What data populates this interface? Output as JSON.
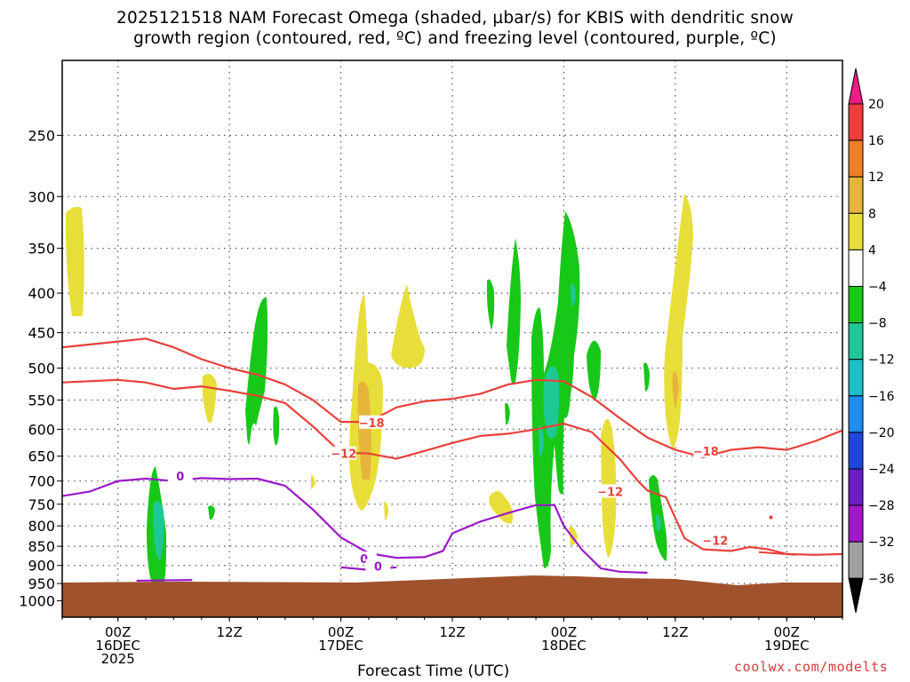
{
  "title_line1": "2025121518 NAM Forecast Omega (shaded, µbar/s) for KBIS with dendritic snow",
  "title_line2": "growth region (contoured, red, ºC) and freezing level (contoured, purple, ºC)",
  "xlabel": "Forecast Time (UTC)",
  "credit": "coolwx.com/modelts",
  "chart_data": {
    "type": "heatmap",
    "title": "2025121518 NAM Forecast Omega (shaded, µbar/s) for KBIS with dendritic snow growth region (contoured, red, ºC) and freezing level (contoured, purple, ºC)",
    "xlabel": "Forecast Time (UTC)",
    "ylabel": "",
    "x_range_hours": [
      -6,
      78
    ],
    "y_range_hpa": [
      200,
      1050
    ],
    "y_scale": "log-pressure (inverted)",
    "grid": true,
    "y_ticks": [
      250,
      300,
      350,
      400,
      450,
      500,
      550,
      600,
      650,
      700,
      750,
      800,
      850,
      900,
      950,
      1000
    ],
    "x_ticks": [
      {
        "hour": 0,
        "label": [
          "00Z",
          "16DEC",
          "2025"
        ]
      },
      {
        "hour": 12,
        "label": [
          "12Z"
        ]
      },
      {
        "hour": 24,
        "label": [
          "00Z",
          "17DEC"
        ]
      },
      {
        "hour": 36,
        "label": [
          "12Z"
        ]
      },
      {
        "hour": 48,
        "label": [
          "00Z",
          "18DEC"
        ]
      },
      {
        "hour": 60,
        "label": [
          "12Z"
        ]
      },
      {
        "hour": 72,
        "label": [
          "00Z",
          "19DEC"
        ]
      }
    ],
    "colorbar": {
      "labels": [
        "20",
        "16",
        "12",
        "8",
        "4",
        "−4",
        "−8",
        "−12",
        "−16",
        "−20",
        "−24",
        "−28",
        "−32",
        "−36"
      ],
      "colors": [
        "#ee1a85",
        "#ef3b3b",
        "#f07e28",
        "#e6b43b",
        "#e8de3a",
        "#ffffff",
        "#18c818",
        "#1ec896",
        "#1cc0c8",
        "#1e8cf0",
        "#1e46dc",
        "#6a1ec8",
        "#a018c8",
        "#a0a0a0"
      ]
    },
    "series": [
      {
        "name": "dendritic snow growth region -18",
        "color": "#e8403a",
        "points": [
          [
            -6,
            470
          ],
          [
            0,
            462
          ],
          [
            3,
            458
          ],
          [
            6,
            470
          ],
          [
            9,
            487
          ],
          [
            12,
            500
          ],
          [
            15,
            510
          ],
          [
            18,
            525
          ],
          [
            21,
            550
          ],
          [
            24,
            587
          ],
          [
            27,
            587
          ],
          [
            30,
            562
          ],
          [
            33,
            552
          ],
          [
            36,
            548
          ],
          [
            39,
            540
          ],
          [
            42,
            525
          ],
          [
            45,
            518
          ],
          [
            48,
            520
          ],
          [
            51,
            545
          ],
          [
            54,
            580
          ],
          [
            57,
            615
          ],
          [
            60,
            638
          ],
          [
            63,
            652
          ],
          [
            66,
            638
          ],
          [
            69,
            633
          ],
          [
            72,
            638
          ],
          [
            75,
            622
          ],
          [
            78,
            602
          ]
        ],
        "labels": [
          {
            "hour": 27.3,
            "hpa": 588,
            "text": "−18"
          },
          {
            "hour": 63.3,
            "hpa": 640,
            "text": "−18"
          }
        ]
      },
      {
        "name": "dendritic snow growth region -12",
        "color": "#e8403a",
        "points": [
          [
            -6,
            522
          ],
          [
            0,
            518
          ],
          [
            3,
            522
          ],
          [
            6,
            532
          ],
          [
            9,
            528
          ],
          [
            12,
            535
          ],
          [
            15,
            543
          ],
          [
            18,
            555
          ],
          [
            21,
            595
          ],
          [
            24,
            643
          ],
          [
            27,
            645
          ],
          [
            30,
            655
          ],
          [
            33,
            640
          ],
          [
            36,
            625
          ],
          [
            39,
            612
          ],
          [
            42,
            608
          ],
          [
            45,
            600
          ],
          [
            48,
            590
          ],
          [
            51,
            605
          ],
          [
            54,
            655
          ],
          [
            56,
            700
          ],
          [
            57,
            720
          ],
          [
            59,
            735
          ],
          [
            61,
            830
          ],
          [
            63,
            858
          ],
          [
            66,
            862
          ],
          [
            68,
            852
          ],
          [
            70,
            858
          ],
          [
            72,
            870
          ],
          [
            75,
            872
          ],
          [
            78,
            870
          ]
        ],
        "labels": [
          {
            "hour": 24.3,
            "hpa": 645,
            "text": "−12"
          },
          {
            "hour": 53.0,
            "hpa": 722,
            "text": "−12"
          },
          {
            "hour": 64.3,
            "hpa": 835,
            "text": "−12"
          }
        ]
      },
      {
        "name": "freezing level 0",
        "color": "#9a18c8",
        "points": [
          [
            -6,
            732
          ],
          [
            -3,
            722
          ],
          [
            0,
            700
          ],
          [
            3,
            695
          ],
          [
            6,
            700
          ],
          [
            9,
            694
          ],
          [
            12,
            696
          ],
          [
            15,
            695
          ],
          [
            18,
            710
          ],
          [
            21,
            762
          ],
          [
            24,
            828
          ],
          [
            27,
            868
          ],
          [
            30,
            880
          ],
          [
            33,
            878
          ],
          [
            35,
            862
          ],
          [
            36,
            818
          ],
          [
            39,
            790
          ],
          [
            42,
            770
          ],
          [
            45,
            752
          ],
          [
            47,
            752
          ],
          [
            48,
            800
          ],
          [
            50,
            860
          ],
          [
            52,
            908
          ],
          [
            54,
            917
          ],
          [
            57,
            920
          ]
        ],
        "labels": [
          {
            "hour": 6.7,
            "hpa": 690,
            "text": "0"
          },
          {
            "hour": 26.5,
            "hpa": 882,
            "text": "0"
          },
          {
            "hour": 28.0,
            "hpa": 902,
            "text": "0"
          }
        ]
      }
    ],
    "terrain_pressure_hpa": 945
  }
}
